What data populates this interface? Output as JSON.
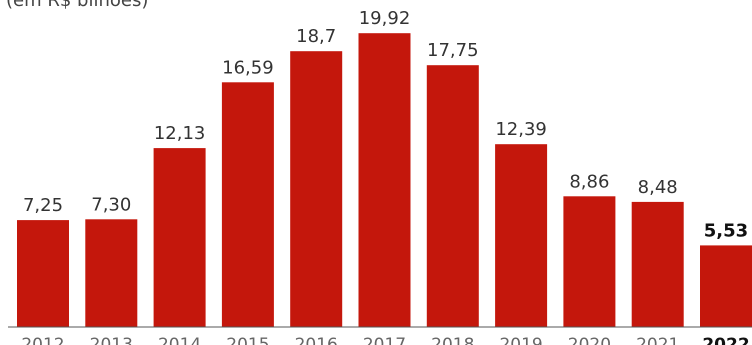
{
  "chart_data": {
    "type": "bar",
    "subtitle": "(em R$ bilhões)",
    "categories": [
      "2012",
      "2013",
      "2014",
      "2015",
      "2016",
      "2017",
      "2018",
      "2019",
      "2020",
      "2021",
      "2022"
    ],
    "values": [
      7.25,
      7.3,
      12.13,
      16.59,
      18.7,
      19.92,
      17.75,
      12.39,
      8.86,
      8.48,
      5.53
    ],
    "value_labels": [
      "7,25",
      "7,30",
      "12,13",
      "16,59",
      "18,7",
      "19,92",
      "17,75",
      "12,39",
      "8,86",
      "8,48",
      "5,53"
    ],
    "highlight_category": "2022",
    "bar_color": "#c4170c",
    "ylim": [
      0,
      20
    ],
    "grid": false,
    "xlabel": "",
    "ylabel": ""
  }
}
